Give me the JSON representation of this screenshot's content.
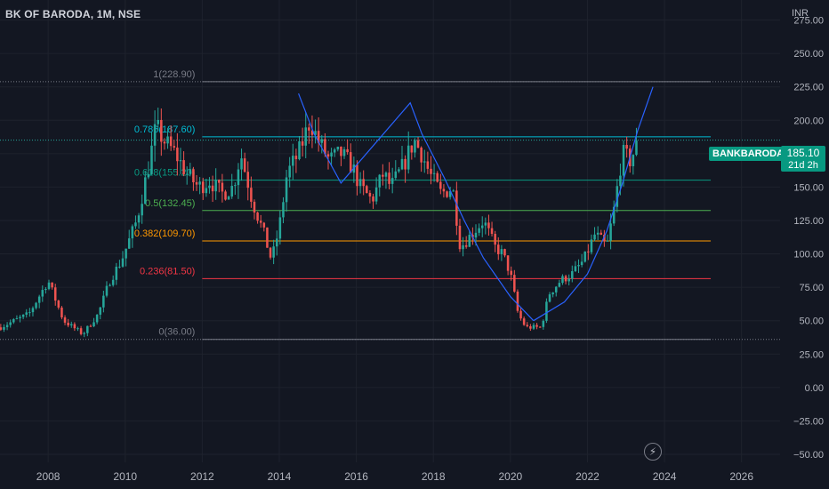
{
  "header": {
    "title": "BK OF BARODA, 1M, NSE",
    "currency": "INR"
  },
  "symbol_label": "BANKBARODA",
  "price_box": {
    "price": "185.10",
    "countdown": "21d 2h"
  },
  "icons": {
    "replay": "lightning-bolt-icon"
  },
  "colors": {
    "background": "#131722",
    "up": "#26a69a",
    "down": "#ef5350",
    "axis_text": "#b2b5be",
    "grid": "#1e222d",
    "curve": "#2962ff"
  },
  "chart_data": {
    "type": "candlestick",
    "y_axis": {
      "range": [
        -56,
        290
      ],
      "ticks": [
        "275.00",
        "250.00",
        "225.00",
        "200.00",
        "175.00",
        "150.00",
        "125.00",
        "100.00",
        "75.00",
        "50.00",
        "25.00",
        "0.00",
        "−25.00",
        "−50.00"
      ]
    },
    "x_axis": {
      "range": [
        2006.75,
        2027.0
      ],
      "ticks": [
        "2008",
        "2010",
        "2012",
        "2014",
        "2016",
        "2018",
        "2020",
        "2022",
        "2024",
        "2026"
      ]
    },
    "fib_levels": [
      {
        "label": "1(228.90)",
        "value": 228.9,
        "color": "#787b86"
      },
      {
        "label": "0.786(187.60)",
        "value": 187.6,
        "color": "#00bcd4"
      },
      {
        "label": "0.618(155.20)",
        "value": 155.2,
        "color": "#089981"
      },
      {
        "label": "0.5(132.45)",
        "value": 132.45,
        "color": "#4caf50"
      },
      {
        "label": "0.382(109.70)",
        "value": 109.7,
        "color": "#ff9800"
      },
      {
        "label": "0.236(81.50)",
        "value": 81.5,
        "color": "#f23645"
      },
      {
        "label": "0(36.00)",
        "value": 36.0,
        "color": "#787b86"
      }
    ],
    "price_line": 185.1,
    "anchors": [
      [
        2006.75,
        45
      ],
      [
        2007.5,
        55
      ],
      [
        2008.0,
        80
      ],
      [
        2008.4,
        50
      ],
      [
        2008.9,
        40
      ],
      [
        2009.3,
        55
      ],
      [
        2009.6,
        80
      ],
      [
        2009.9,
        95
      ],
      [
        2010.3,
        125
      ],
      [
        2010.6,
        165
      ],
      [
        2010.8,
        195
      ],
      [
        2011.0,
        185
      ],
      [
        2011.3,
        175
      ],
      [
        2011.6,
        160
      ],
      [
        2011.9,
        150
      ],
      [
        2012.2,
        155
      ],
      [
        2012.5,
        145
      ],
      [
        2012.8,
        150
      ],
      [
        2013.0,
        175
      ],
      [
        2013.3,
        140
      ],
      [
        2013.6,
        115
      ],
      [
        2013.8,
        95
      ],
      [
        2014.0,
        120
      ],
      [
        2014.2,
        160
      ],
      [
        2014.5,
        175
      ],
      [
        2014.8,
        200
      ],
      [
        2015.0,
        185
      ],
      [
        2015.3,
        170
      ],
      [
        2015.6,
        175
      ],
      [
        2015.9,
        165
      ],
      [
        2016.1,
        150
      ],
      [
        2016.4,
        140
      ],
      [
        2016.7,
        160
      ],
      [
        2016.9,
        150
      ],
      [
        2017.2,
        165
      ],
      [
        2017.5,
        185
      ],
      [
        2017.7,
        175
      ],
      [
        2017.9,
        160
      ],
      [
        2018.2,
        145
      ],
      [
        2018.5,
        150
      ],
      [
        2018.7,
        105
      ],
      [
        2019.0,
        115
      ],
      [
        2019.3,
        125
      ],
      [
        2019.6,
        105
      ],
      [
        2019.8,
        100
      ],
      [
        2020.0,
        85
      ],
      [
        2020.2,
        55
      ],
      [
        2020.4,
        45
      ],
      [
        2020.8,
        45
      ],
      [
        2021.0,
        70
      ],
      [
        2021.3,
        80
      ],
      [
        2021.6,
        85
      ],
      [
        2021.9,
        95
      ],
      [
        2022.2,
        115
      ],
      [
        2022.5,
        105
      ],
      [
        2022.7,
        135
      ],
      [
        2022.9,
        175
      ],
      [
        2023.1,
        170
      ],
      [
        2023.35,
        185
      ]
    ],
    "cup_curve": [
      [
        2020.6,
        50
      ],
      [
        2020.0,
        68
      ],
      [
        2019.3,
        97
      ],
      [
        2018.8,
        125
      ],
      [
        2018.3,
        156
      ],
      [
        2017.7,
        190
      ],
      [
        2017.4,
        213
      ],
      [
        2015.6,
        153
      ],
      [
        2014.9,
        190
      ],
      [
        2014.5,
        220
      ],
      [
        2020.6,
        50
      ],
      [
        2021.4,
        64
      ],
      [
        2022.0,
        85
      ],
      [
        2022.5,
        117
      ],
      [
        2022.9,
        152
      ],
      [
        2023.3,
        192
      ],
      [
        2023.7,
        225
      ]
    ]
  }
}
